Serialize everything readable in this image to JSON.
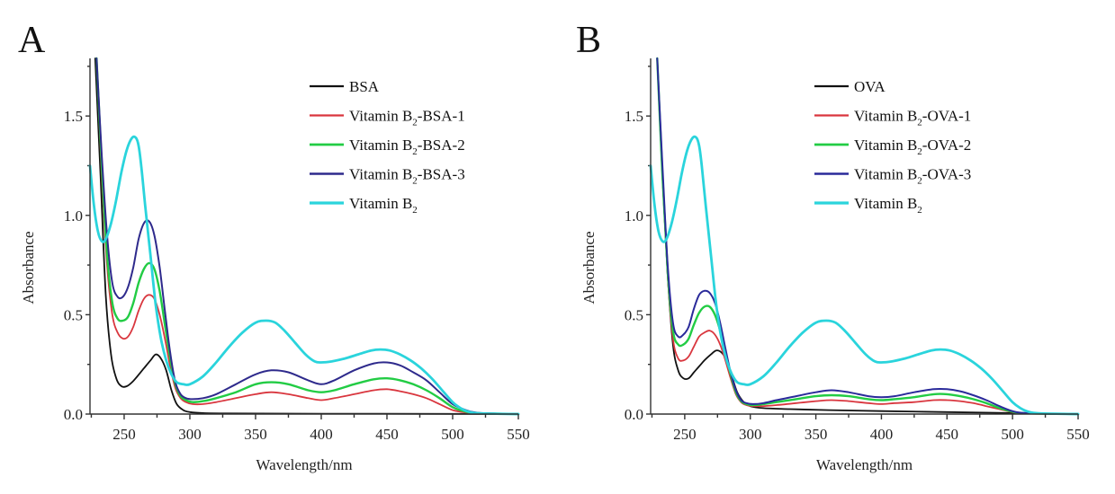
{
  "chart_data": [
    {
      "type": "line",
      "panel": "A",
      "title": "",
      "xlabel": "Wavelength/nm",
      "ylabel": "Absorbance",
      "xlim": [
        224,
        550
      ],
      "ylim": [
        0,
        1.79
      ],
      "xticks": [
        250,
        300,
        350,
        400,
        450,
        500,
        550
      ],
      "xtick_labels": [
        "250",
        "300",
        "350",
        "400",
        "450",
        "500",
        "550"
      ],
      "yticks": [
        0.0,
        0.5,
        1.0,
        1.5
      ],
      "ytick_labels": [
        "0.0",
        "0.5",
        "1.0",
        "1.5"
      ],
      "legend_position": "top-right",
      "series": [
        {
          "name": "BSA",
          "legend_main": "BSA",
          "legend_sub": "",
          "legend_tail": "",
          "color": "#111111",
          "x": [
            228,
            232,
            236,
            240,
            244,
            248,
            252,
            256,
            260,
            265,
            270,
            274,
            278,
            282,
            286,
            290,
            295,
            300,
            310,
            330,
            400,
            500,
            550
          ],
          "y": [
            1.79,
            1.2,
            0.6,
            0.3,
            0.18,
            0.14,
            0.14,
            0.16,
            0.19,
            0.23,
            0.27,
            0.3,
            0.28,
            0.22,
            0.12,
            0.05,
            0.02,
            0.01,
            0.005,
            0.003,
            0.002,
            0.001,
            0.0
          ]
        },
        {
          "name": "Vitamin B2-BSA-1",
          "legend_main": "Vitamin B",
          "legend_sub": "2",
          "legend_tail": "-BSA-1",
          "color": "#d9363e",
          "x": [
            229,
            233,
            237,
            241,
            245,
            249,
            253,
            257,
            261,
            265,
            269,
            273,
            277,
            281,
            285,
            289,
            293,
            297,
            302,
            310,
            320,
            335,
            350,
            362,
            375,
            390,
            400,
            410,
            425,
            440,
            450,
            460,
            470,
            480,
            490,
            500,
            510,
            520,
            550
          ],
          "y": [
            1.79,
            1.2,
            0.75,
            0.5,
            0.41,
            0.38,
            0.39,
            0.44,
            0.52,
            0.58,
            0.6,
            0.58,
            0.5,
            0.38,
            0.24,
            0.13,
            0.08,
            0.06,
            0.05,
            0.05,
            0.06,
            0.08,
            0.1,
            0.11,
            0.1,
            0.08,
            0.07,
            0.08,
            0.1,
            0.12,
            0.125,
            0.115,
            0.1,
            0.08,
            0.05,
            0.02,
            0.008,
            0.003,
            0.0
          ]
        },
        {
          "name": "Vitamin B2-BSA-2",
          "legend_main": "Vitamin B",
          "legend_sub": "2",
          "legend_tail": "-BSA-2",
          "color": "#22cc44",
          "x": [
            229,
            233,
            237,
            241,
            245,
            249,
            253,
            257,
            261,
            265,
            269,
            273,
            277,
            281,
            285,
            289,
            293,
            297,
            302,
            310,
            320,
            335,
            350,
            362,
            375,
            390,
            400,
            410,
            425,
            440,
            450,
            460,
            470,
            480,
            490,
            500,
            510,
            520,
            550
          ],
          "y": [
            1.79,
            1.25,
            0.8,
            0.56,
            0.48,
            0.47,
            0.49,
            0.56,
            0.66,
            0.73,
            0.76,
            0.73,
            0.62,
            0.45,
            0.28,
            0.15,
            0.09,
            0.07,
            0.06,
            0.065,
            0.08,
            0.11,
            0.15,
            0.16,
            0.15,
            0.12,
            0.11,
            0.12,
            0.15,
            0.175,
            0.18,
            0.17,
            0.15,
            0.12,
            0.08,
            0.035,
            0.012,
            0.004,
            0.0
          ]
        },
        {
          "name": "Vitamin B2-BSA-3",
          "legend_main": "Vitamin B",
          "legend_sub": "2",
          "legend_tail": "-BSA-3",
          "color": "#2e2a8c",
          "x": [
            229,
            233,
            237,
            241,
            245,
            249,
            253,
            257,
            261,
            265,
            269,
            273,
            277,
            281,
            285,
            289,
            293,
            297,
            302,
            310,
            320,
            335,
            350,
            362,
            375,
            390,
            400,
            410,
            425,
            440,
            450,
            460,
            470,
            480,
            490,
            500,
            510,
            520,
            550
          ],
          "y": [
            1.79,
            1.3,
            0.9,
            0.66,
            0.59,
            0.59,
            0.64,
            0.74,
            0.88,
            0.96,
            0.97,
            0.9,
            0.74,
            0.52,
            0.31,
            0.16,
            0.1,
            0.08,
            0.075,
            0.08,
            0.1,
            0.15,
            0.2,
            0.22,
            0.21,
            0.17,
            0.15,
            0.17,
            0.22,
            0.255,
            0.26,
            0.245,
            0.21,
            0.17,
            0.11,
            0.05,
            0.02,
            0.006,
            0.0
          ]
        },
        {
          "name": "Vitamin B2",
          "legend_main": "Vitamin B",
          "legend_sub": "2",
          "legend_tail": "",
          "color": "#2ad4dc",
          "x": [
            224,
            227,
            230,
            233,
            236,
            240,
            244,
            248,
            252,
            256,
            259,
            261,
            263,
            266,
            270,
            274,
            278,
            282,
            286,
            290,
            295,
            300,
            310,
            320,
            330,
            340,
            350,
            358,
            365,
            372,
            380,
            388,
            395,
            400,
            408,
            418,
            428,
            438,
            445,
            452,
            460,
            468,
            476,
            484,
            492,
            500,
            506,
            512,
            520,
            550
          ],
          "y": [
            1.25,
            1.05,
            0.92,
            0.87,
            0.88,
            0.96,
            1.08,
            1.22,
            1.33,
            1.39,
            1.39,
            1.35,
            1.25,
            1.05,
            0.8,
            0.55,
            0.38,
            0.27,
            0.2,
            0.16,
            0.15,
            0.15,
            0.19,
            0.26,
            0.34,
            0.41,
            0.46,
            0.47,
            0.46,
            0.42,
            0.36,
            0.3,
            0.265,
            0.26,
            0.265,
            0.28,
            0.3,
            0.32,
            0.325,
            0.32,
            0.3,
            0.27,
            0.23,
            0.18,
            0.12,
            0.06,
            0.03,
            0.012,
            0.004,
            0.0
          ]
        }
      ]
    },
    {
      "type": "line",
      "panel": "B",
      "title": "",
      "xlabel": "Wavelength/nm",
      "ylabel": "Absorbance",
      "xlim": [
        224,
        550
      ],
      "ylim": [
        0,
        1.79
      ],
      "xticks": [
        250,
        300,
        350,
        400,
        450,
        500,
        550
      ],
      "xtick_labels": [
        "250",
        "300",
        "350",
        "400",
        "450",
        "500",
        "550"
      ],
      "yticks": [
        0.0,
        0.5,
        1.0,
        1.5
      ],
      "ytick_labels": [
        "0.0",
        "0.5",
        "1.0",
        "1.5"
      ],
      "legend_position": "top-right",
      "series": [
        {
          "name": "OVA",
          "legend_main": "OVA",
          "legend_sub": "",
          "legend_tail": "",
          "color": "#111111",
          "x": [
            229,
            233,
            237,
            241,
            245,
            249,
            253,
            257,
            261,
            265,
            270,
            274,
            278,
            282,
            286,
            290,
            295,
            300,
            310,
            330,
            360,
            400,
            450,
            500,
            550
          ],
          "y": [
            1.79,
            1.2,
            0.7,
            0.35,
            0.22,
            0.18,
            0.18,
            0.21,
            0.24,
            0.27,
            0.3,
            0.32,
            0.31,
            0.27,
            0.19,
            0.11,
            0.06,
            0.04,
            0.03,
            0.025,
            0.02,
            0.015,
            0.01,
            0.005,
            0.0
          ]
        },
        {
          "name": "Vitamin B2-OVA-1",
          "legend_main": "Vitamin B",
          "legend_sub": "2",
          "legend_tail": "-OVA-1",
          "color": "#d9363e",
          "x": [
            229,
            233,
            237,
            241,
            245,
            249,
            253,
            257,
            261,
            265,
            269,
            273,
            277,
            281,
            285,
            289,
            293,
            297,
            302,
            310,
            320,
            335,
            350,
            362,
            375,
            390,
            400,
            410,
            425,
            440,
            450,
            460,
            470,
            480,
            490,
            500,
            510,
            550
          ],
          "y": [
            1.79,
            1.2,
            0.7,
            0.38,
            0.28,
            0.27,
            0.29,
            0.34,
            0.39,
            0.41,
            0.42,
            0.4,
            0.35,
            0.27,
            0.18,
            0.1,
            0.06,
            0.045,
            0.04,
            0.04,
            0.045,
            0.055,
            0.065,
            0.07,
            0.065,
            0.055,
            0.05,
            0.055,
            0.06,
            0.07,
            0.07,
            0.065,
            0.055,
            0.04,
            0.025,
            0.01,
            0.003,
            0.0
          ]
        },
        {
          "name": "Vitamin B2-OVA-2",
          "legend_main": "Vitamin B",
          "legend_sub": "2",
          "legend_tail": "-OVA-2",
          "color": "#22cc44",
          "x": [
            229,
            233,
            237,
            241,
            245,
            249,
            253,
            257,
            261,
            265,
            269,
            273,
            277,
            281,
            285,
            289,
            293,
            297,
            302,
            310,
            320,
            335,
            350,
            362,
            375,
            390,
            400,
            410,
            425,
            440,
            450,
            460,
            470,
            480,
            490,
            500,
            510,
            550
          ],
          "y": [
            1.79,
            1.2,
            0.72,
            0.42,
            0.35,
            0.35,
            0.38,
            0.45,
            0.51,
            0.54,
            0.54,
            0.5,
            0.42,
            0.31,
            0.2,
            0.11,
            0.065,
            0.05,
            0.045,
            0.05,
            0.06,
            0.075,
            0.09,
            0.095,
            0.09,
            0.075,
            0.07,
            0.075,
            0.085,
            0.1,
            0.1,
            0.09,
            0.075,
            0.055,
            0.03,
            0.012,
            0.004,
            0.0
          ]
        },
        {
          "name": "Vitamin B2-OVA-3",
          "legend_main": "Vitamin B",
          "legend_sub": "2",
          "legend_tail": "-OVA-3",
          "color": "#2a2a9a",
          "x": [
            229,
            233,
            237,
            241,
            245,
            249,
            253,
            257,
            261,
            265,
            269,
            273,
            277,
            281,
            285,
            289,
            293,
            297,
            302,
            310,
            320,
            335,
            350,
            362,
            375,
            390,
            400,
            410,
            425,
            440,
            450,
            460,
            470,
            480,
            490,
            500,
            510,
            550
          ],
          "y": [
            1.79,
            1.25,
            0.75,
            0.46,
            0.39,
            0.4,
            0.44,
            0.53,
            0.6,
            0.62,
            0.61,
            0.56,
            0.46,
            0.33,
            0.21,
            0.12,
            0.07,
            0.055,
            0.05,
            0.055,
            0.07,
            0.09,
            0.11,
            0.12,
            0.11,
            0.09,
            0.085,
            0.09,
            0.11,
            0.125,
            0.125,
            0.115,
            0.095,
            0.07,
            0.04,
            0.015,
            0.005,
            0.0
          ]
        },
        {
          "name": "Vitamin B2",
          "legend_main": "Vitamin B",
          "legend_sub": "2",
          "legend_tail": "",
          "color": "#2ad4dc",
          "x": [
            224,
            227,
            230,
            233,
            236,
            240,
            244,
            248,
            252,
            256,
            259,
            261,
            263,
            266,
            270,
            274,
            278,
            282,
            286,
            290,
            295,
            300,
            310,
            320,
            330,
            340,
            350,
            358,
            365,
            372,
            380,
            388,
            395,
            400,
            408,
            418,
            428,
            438,
            445,
            452,
            460,
            468,
            476,
            484,
            492,
            500,
            506,
            512,
            520,
            550
          ],
          "y": [
            1.25,
            1.05,
            0.92,
            0.87,
            0.88,
            0.96,
            1.08,
            1.22,
            1.33,
            1.39,
            1.39,
            1.35,
            1.25,
            1.05,
            0.8,
            0.55,
            0.38,
            0.27,
            0.2,
            0.16,
            0.15,
            0.15,
            0.19,
            0.26,
            0.34,
            0.41,
            0.46,
            0.47,
            0.46,
            0.42,
            0.36,
            0.3,
            0.265,
            0.26,
            0.265,
            0.28,
            0.3,
            0.32,
            0.325,
            0.32,
            0.3,
            0.27,
            0.23,
            0.18,
            0.12,
            0.06,
            0.03,
            0.012,
            0.004,
            0.0
          ]
        }
      ]
    }
  ]
}
